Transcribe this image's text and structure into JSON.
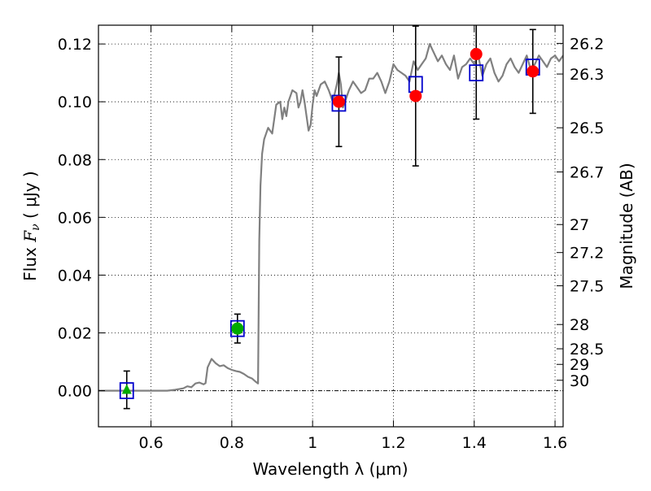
{
  "chart_data": {
    "type": "scatter",
    "xlabel": "Wavelength  λ (μm)",
    "ylabel_prefix": "Flux  ",
    "ylabel_symbol": "F",
    "ylabel_sub": "ν",
    "ylabel_suffix": "  ( μJy )",
    "y2label": "Magnitude (AB)",
    "xlim": [
      0.47,
      1.62
    ],
    "ylim": [
      -0.0125,
      0.1265
    ],
    "grid": true,
    "xticks": [
      {
        "value": 0.6,
        "label": "0.6"
      },
      {
        "value": 0.8,
        "label": "0.8"
      },
      {
        "value": 1.0,
        "label": "1"
      },
      {
        "value": 1.2,
        "label": "1.2"
      },
      {
        "value": 1.4,
        "label": "1.4"
      },
      {
        "value": 1.6,
        "label": "1.6"
      }
    ],
    "yticks": [
      {
        "value": 0.0,
        "label": "0.00"
      },
      {
        "value": 0.02,
        "label": "0.02"
      },
      {
        "value": 0.04,
        "label": "0.04"
      },
      {
        "value": 0.06,
        "label": "0.06"
      },
      {
        "value": 0.08,
        "label": "0.08"
      },
      {
        "value": 0.1,
        "label": "0.10"
      },
      {
        "value": 0.12,
        "label": "0.12"
      }
    ],
    "mag_ticks": [
      {
        "flux": 0.1202,
        "label": "26.2"
      },
      {
        "flux": 0.1096,
        "label": "26.3"
      },
      {
        "flux": 0.091,
        "label": "26.5"
      },
      {
        "flux": 0.0757,
        "label": "26.7"
      },
      {
        "flux": 0.0575,
        "label": "27"
      },
      {
        "flux": 0.0478,
        "label": "27.2"
      },
      {
        "flux": 0.0363,
        "label": "27.5"
      },
      {
        "flux": 0.0229,
        "label": "28"
      },
      {
        "flux": 0.0145,
        "label": "28.5"
      },
      {
        "flux": 0.0091,
        "label": "29"
      },
      {
        "flux": 0.0036,
        "label": "30"
      }
    ],
    "model_sed": {
      "name": "model spectrum",
      "color": "#808080",
      "x": [
        0.47,
        0.55,
        0.6,
        0.64,
        0.66,
        0.68,
        0.69,
        0.7,
        0.71,
        0.72,
        0.73,
        0.735,
        0.74,
        0.745,
        0.75,
        0.76,
        0.77,
        0.78,
        0.79,
        0.8,
        0.81,
        0.82,
        0.83,
        0.84,
        0.85,
        0.86,
        0.865,
        0.868,
        0.871,
        0.875,
        0.88,
        0.89,
        0.9,
        0.905,
        0.91,
        0.92,
        0.925,
        0.93,
        0.935,
        0.94,
        0.95,
        0.96,
        0.965,
        0.97,
        0.975,
        0.98,
        0.985,
        0.99,
        0.995,
        1.0,
        1.005,
        1.01,
        1.02,
        1.03,
        1.04,
        1.05,
        1.06,
        1.065,
        1.07,
        1.075,
        1.08,
        1.09,
        1.1,
        1.11,
        1.12,
        1.13,
        1.14,
        1.15,
        1.16,
        1.17,
        1.18,
        1.19,
        1.2,
        1.21,
        1.22,
        1.23,
        1.24,
        1.25,
        1.26,
        1.27,
        1.28,
        1.29,
        1.3,
        1.31,
        1.32,
        1.33,
        1.34,
        1.35,
        1.36,
        1.37,
        1.38,
        1.39,
        1.4,
        1.41,
        1.42,
        1.43,
        1.44,
        1.45,
        1.46,
        1.47,
        1.48,
        1.49,
        1.5,
        1.51,
        1.52,
        1.53,
        1.54,
        1.55,
        1.56,
        1.57,
        1.58,
        1.59,
        1.6,
        1.61,
        1.62
      ],
      "y": [
        0.0,
        0.0,
        0.0,
        0.0,
        0.0003,
        0.0008,
        0.0015,
        0.0012,
        0.0025,
        0.0028,
        0.0022,
        0.0026,
        0.008,
        0.0095,
        0.011,
        0.0095,
        0.0085,
        0.0088,
        0.0078,
        0.0072,
        0.0068,
        0.0065,
        0.0058,
        0.0048,
        0.0042,
        0.003,
        0.0025,
        0.052,
        0.071,
        0.082,
        0.087,
        0.091,
        0.089,
        0.094,
        0.099,
        0.1,
        0.094,
        0.098,
        0.095,
        0.1,
        0.104,
        0.103,
        0.098,
        0.1,
        0.104,
        0.1,
        0.095,
        0.09,
        0.092,
        0.099,
        0.104,
        0.102,
        0.106,
        0.107,
        0.104,
        0.1,
        0.106,
        0.11,
        0.106,
        0.098,
        0.1,
        0.104,
        0.107,
        0.105,
        0.103,
        0.104,
        0.108,
        0.108,
        0.11,
        0.107,
        0.103,
        0.107,
        0.113,
        0.111,
        0.11,
        0.109,
        0.107,
        0.114,
        0.111,
        0.113,
        0.115,
        0.12,
        0.117,
        0.114,
        0.116,
        0.113,
        0.111,
        0.116,
        0.108,
        0.112,
        0.113,
        0.115,
        0.113,
        0.116,
        0.109,
        0.113,
        0.115,
        0.11,
        0.107,
        0.109,
        0.113,
        0.115,
        0.112,
        0.11,
        0.113,
        0.116,
        0.111,
        0.113,
        0.116,
        0.114,
        0.112,
        0.115,
        0.116,
        0.114,
        0.116
      ]
    },
    "model_points": {
      "name": "model fluxes",
      "color": "#0000cc",
      "marker": "open-square",
      "x": [
        0.54,
        0.814,
        1.065,
        1.255,
        1.405,
        1.545
      ],
      "y": [
        0.0,
        0.0215,
        0.0995,
        0.106,
        0.11,
        0.112
      ]
    },
    "observed": [
      {
        "x": 0.54,
        "y": 0.0003,
        "err": 0.0065,
        "marker": "triangle",
        "color": "#00aa00"
      },
      {
        "x": 0.814,
        "y": 0.0215,
        "err": 0.005,
        "marker": "circle",
        "color": "#00aa00"
      },
      {
        "x": 1.065,
        "y": 0.1,
        "err": 0.0155,
        "marker": "circle",
        "color": "#ff0000"
      },
      {
        "x": 1.255,
        "y": 0.102,
        "err": 0.0242,
        "marker": "circle",
        "color": "#ff0000"
      },
      {
        "x": 1.405,
        "y": 0.1165,
        "err": 0.0225,
        "marker": "circle",
        "color": "#ff0000"
      },
      {
        "x": 1.545,
        "y": 0.1105,
        "err": 0.0145,
        "marker": "circle",
        "color": "#ff0000"
      }
    ]
  }
}
